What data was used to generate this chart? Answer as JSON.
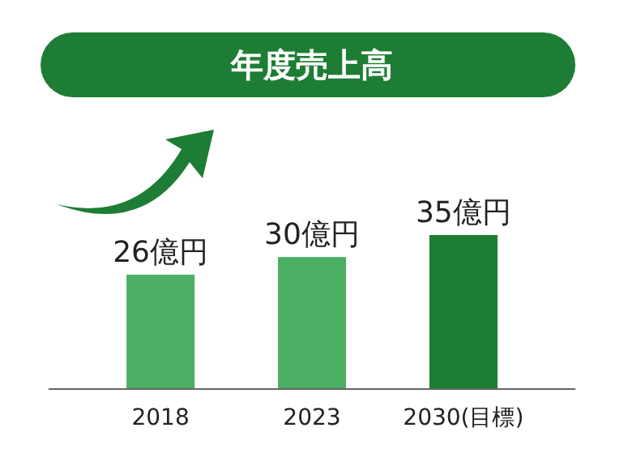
{
  "chart_data": {
    "type": "bar",
    "title": "年度売上高",
    "categories": [
      "2018",
      "2023",
      "2030(目標)"
    ],
    "values": [
      26,
      30,
      35
    ],
    "colors": [
      "#4caf64",
      "#4caf64",
      "#1e7d34"
    ],
    "value_labels": [
      "26億円",
      "30億円",
      "35億円"
    ]
  }
}
